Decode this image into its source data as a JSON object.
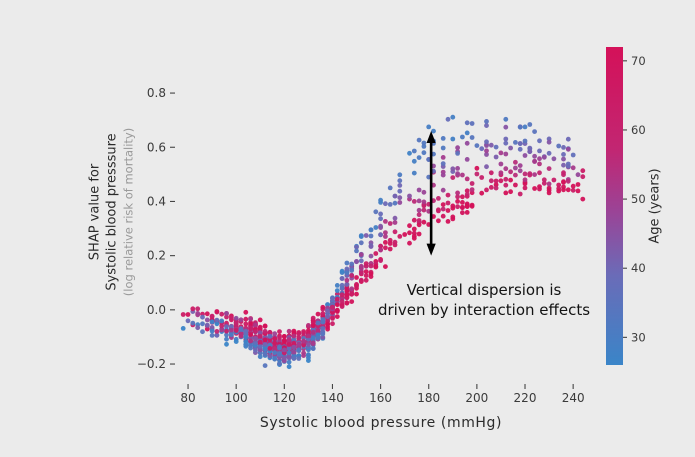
{
  "chart_data": {
    "type": "scatter",
    "title": "",
    "xlabel": "Systolic blood pressure (mmHg)",
    "ylabel_line1": "SHAP value for",
    "ylabel_line2": "Systolic blood presssure",
    "ylabel_sub": "(log relative risk of mortality)",
    "xlim": [
      75,
      247
    ],
    "ylim": [
      -0.27,
      0.97
    ],
    "x_ticks": [
      80,
      100,
      120,
      140,
      160,
      180,
      200,
      220,
      240
    ],
    "y_ticks": [
      -0.2,
      0.0,
      0.2,
      0.4,
      0.6,
      0.8
    ],
    "grid": false,
    "legend": "none",
    "colorbar": {
      "label": "Age (years)",
      "ticks": [
        30,
        40,
        50,
        60,
        70
      ],
      "vmin": 26,
      "vmax": 72,
      "gradient": [
        [
          "#3a85c8",
          0
        ],
        [
          "#6a6cb8",
          28
        ],
        [
          "#9a4497",
          48
        ],
        [
          "#c22672",
          68
        ],
        [
          "#d41159",
          100
        ]
      ]
    },
    "annotation": {
      "line1": "Vertical dispersion is",
      "line2": "driven by interaction effects",
      "arrow_x": 181,
      "arrow_y_from": 0.2,
      "arrow_y_to": 0.66
    },
    "trend": {
      "comment": "mean SHAP curve vs systolic BP; dispersion = age-interaction spread above the curve (young=blue high, old=red low)",
      "x": [
        78,
        85,
        90,
        95,
        100,
        105,
        110,
        115,
        120,
        125,
        130,
        135,
        140,
        145,
        150,
        155,
        160,
        165,
        170,
        175,
        180,
        190,
        200,
        210,
        220,
        230,
        243
      ],
      "y": [
        -0.04,
        -0.03,
        -0.05,
        -0.06,
        -0.07,
        -0.09,
        -0.11,
        -0.13,
        -0.145,
        -0.135,
        -0.11,
        -0.06,
        -0.01,
        0.04,
        0.09,
        0.13,
        0.18,
        0.22,
        0.26,
        0.29,
        0.31,
        0.36,
        0.41,
        0.44,
        0.44,
        0.45,
        0.44
      ],
      "dispersion_x": [
        78,
        130,
        135,
        140,
        145,
        150,
        155,
        160,
        170,
        180,
        190,
        200,
        210,
        220,
        230,
        243
      ],
      "dispersion_y": [
        0,
        0,
        0.02,
        0.06,
        0.1,
        0.15,
        0.2,
        0.27,
        0.32,
        0.36,
        0.38,
        0.38,
        0.3,
        0.26,
        0.22,
        0.2
      ]
    },
    "n_points": 1200,
    "seed": 20,
    "point_radius": 2.4,
    "background": "#ebebeb"
  }
}
